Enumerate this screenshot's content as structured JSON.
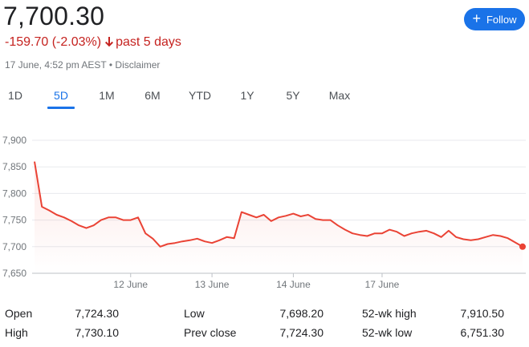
{
  "quote": {
    "price": "7,700.30",
    "change": "-159.70 (-2.03%)",
    "period": "past 5 days",
    "timestamp": "17 June, 4:52 pm AEST",
    "separator": "•",
    "disclaimer": "Disclaimer"
  },
  "follow": {
    "label": "Follow",
    "icon": "plus-icon"
  },
  "tabs": [
    {
      "label": "1D",
      "active": false
    },
    {
      "label": "5D",
      "active": true
    },
    {
      "label": "1M",
      "active": false
    },
    {
      "label": "6M",
      "active": false
    },
    {
      "label": "YTD",
      "active": false
    },
    {
      "label": "1Y",
      "active": false
    },
    {
      "label": "5Y",
      "active": false
    },
    {
      "label": "Max",
      "active": false
    }
  ],
  "colors": {
    "accent": "#1a73e8",
    "negative": "#c5221f",
    "line": "#ea4335",
    "grid": "#e8eaed",
    "muted": "#70757a"
  },
  "chart_data": {
    "type": "line",
    "ylim": [
      7650,
      7900
    ],
    "yticks": [
      7650,
      7700,
      7750,
      7800,
      7850,
      7900
    ],
    "ytick_labels": [
      "7,650",
      "7,700",
      "7,750",
      "7,800",
      "7,850",
      "7,900"
    ],
    "xtick_labels": [
      "12 June",
      "13 June",
      "14 June",
      "17 June"
    ],
    "xtick_index": [
      13,
      24,
      35,
      47
    ],
    "grid": true,
    "series": [
      {
        "values": [
          7860,
          7775,
          7768,
          7760,
          7755,
          7748,
          7740,
          7735,
          7740,
          7750,
          7755,
          7755,
          7750,
          7750,
          7755,
          7725,
          7715,
          7700,
          7705,
          7707,
          7710,
          7712,
          7715,
          7710,
          7707,
          7712,
          7718,
          7716,
          7765,
          7760,
          7755,
          7760,
          7748,
          7755,
          7758,
          7762,
          7757,
          7760,
          7752,
          7750,
          7750,
          7740,
          7732,
          7725,
          7722,
          7720,
          7725,
          7725,
          7732,
          7728,
          7720,
          7725,
          7728,
          7730,
          7725,
          7718,
          7730,
          7718,
          7714,
          7712,
          7714,
          7718,
          7722,
          7720,
          7716,
          7708,
          7700
        ]
      }
    ]
  },
  "stats": [
    {
      "label": "Open",
      "value": "7,724.30"
    },
    {
      "label": "High",
      "value": "7,730.10"
    },
    {
      "label": "Low",
      "value": "7,698.20"
    },
    {
      "label": "Prev close",
      "value": "7,724.30"
    },
    {
      "label": "52-wk high",
      "value": "7,910.50"
    },
    {
      "label": "52-wk low",
      "value": "6,751.30"
    }
  ]
}
